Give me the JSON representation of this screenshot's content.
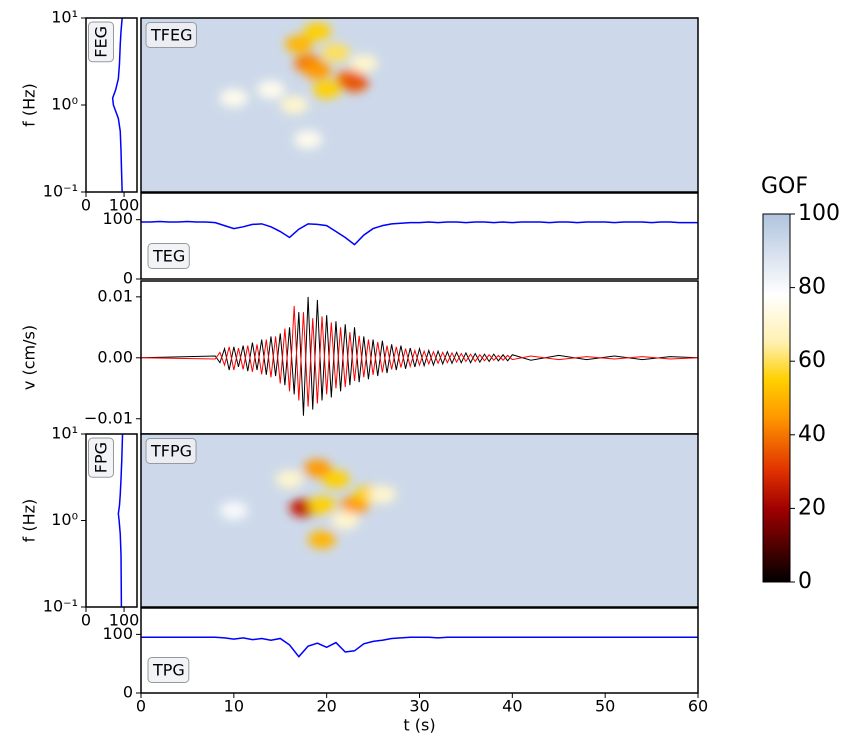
{
  "chart_data": [
    {
      "type": "heatmap",
      "label": "TFEG",
      "ylabel": "f (Hz)",
      "xlim": [
        0,
        60
      ],
      "ylim": [
        0.1,
        10
      ],
      "log_y": true,
      "background": 92,
      "spots": {
        "t": [
          17,
          18,
          19,
          20,
          22.5,
          23,
          16.5,
          10,
          19,
          18,
          21,
          24,
          14
        ],
        "f": [
          5,
          3,
          2.5,
          1.5,
          2,
          1.8,
          1,
          1.2,
          7,
          0.4,
          4,
          3,
          1.5
        ],
        "values": [
          50,
          40,
          45,
          55,
          40,
          35,
          70,
          75,
          55,
          75,
          60,
          70,
          75
        ]
      }
    },
    {
      "type": "profile",
      "label": "FEG",
      "xlim": [
        0,
        134
      ],
      "xticks": [
        0,
        100
      ],
      "ylim": [
        0.1,
        10
      ],
      "log_y": true,
      "yticks": [
        {
          "value": 0.1,
          "label": "10⁻¹"
        },
        {
          "value": 1,
          "label": "10⁰"
        },
        {
          "value": 10,
          "label": "10¹"
        }
      ],
      "f": [
        10,
        7,
        5,
        3,
        2,
        1.5,
        1.2,
        1,
        0.7,
        0.5,
        0.3,
        0.2,
        0.1
      ],
      "values": [
        95,
        92,
        90,
        88,
        85,
        78,
        70,
        72,
        85,
        90,
        92,
        93,
        95
      ],
      "color": "#0000ff"
    },
    {
      "type": "line",
      "label": "TEG",
      "xlim": [
        0,
        60
      ],
      "ylim": [
        0,
        145
      ],
      "yticks": [
        0,
        100
      ],
      "color": "#0000ff",
      "x": [
        0,
        1,
        2,
        3,
        4,
        5,
        6,
        7,
        8,
        9,
        10,
        11,
        12,
        13,
        14,
        15,
        16,
        17,
        18,
        19,
        20,
        21,
        22,
        23,
        24,
        25,
        26,
        27,
        28,
        29,
        30,
        31,
        32,
        33,
        34,
        35,
        36,
        37,
        38,
        39,
        40,
        41,
        42,
        43,
        44,
        45,
        46,
        47,
        48,
        49,
        50,
        51,
        52,
        53,
        54,
        55,
        56,
        57,
        58,
        59,
        60
      ],
      "values": [
        96,
        96,
        97,
        96,
        96,
        97,
        96,
        96,
        95,
        90,
        85,
        88,
        92,
        93,
        88,
        80,
        70,
        84,
        93,
        92,
        90,
        80,
        70,
        58,
        74,
        85,
        90,
        93,
        94,
        95,
        95,
        96,
        95,
        96,
        96,
        95,
        96,
        96,
        95,
        96,
        95,
        96,
        96,
        96,
        95,
        96,
        96,
        95,
        96,
        96,
        96,
        95,
        96,
        96,
        96,
        95,
        96,
        96,
        95,
        95,
        95
      ]
    },
    {
      "type": "line",
      "ylabel": "v (cm/s)",
      "xlim": [
        0,
        60
      ],
      "ylim": [
        -0.0125,
        0.0126
      ],
      "yticks": [
        {
          "value": -0.01,
          "label": "−0.01"
        },
        {
          "value": 0,
          "label": "0.00"
        },
        0.01
      ],
      "x": [
        0,
        8,
        8.5,
        9,
        9.5,
        10,
        10.5,
        11,
        11.5,
        12,
        12.5,
        13,
        13.5,
        14,
        14.5,
        15,
        15.5,
        16,
        16.5,
        17,
        17.5,
        18,
        18.5,
        19,
        19.5,
        20,
        20.5,
        21,
        21.5,
        22,
        22.5,
        23,
        23.5,
        24,
        24.5,
        25,
        25.5,
        26,
        26.5,
        27,
        27.5,
        28,
        28.5,
        29,
        29.5,
        30,
        30.5,
        31,
        31.5,
        32,
        32.5,
        33,
        33.5,
        34,
        34.5,
        35,
        35.5,
        36,
        36.5,
        37,
        37.5,
        38,
        38.5,
        39,
        39.5,
        40,
        42,
        45,
        48,
        51,
        54,
        57,
        60
      ],
      "series": [
        {
          "color": "#000000",
          "values": [
            0,
            0.0003,
            -0.0008,
            0.0015,
            -0.002,
            0.0018,
            -0.0015,
            0.002,
            -0.0022,
            0.0025,
            -0.002,
            0.003,
            -0.0028,
            0.0035,
            -0.003,
            0.004,
            -0.0045,
            0.005,
            -0.006,
            0.0075,
            -0.0095,
            0.01,
            -0.0085,
            0.0095,
            -0.007,
            0.007,
            -0.0065,
            0.006,
            -0.0055,
            0.0055,
            -0.0045,
            0.005,
            -0.004,
            0.0035,
            -0.0035,
            0.003,
            -0.003,
            0.0028,
            -0.0025,
            0.0022,
            -0.002,
            0.002,
            -0.0018,
            0.0016,
            -0.0015,
            0.0015,
            -0.0013,
            0.0012,
            -0.0012,
            0.0011,
            -0.001,
            0.001,
            -0.0009,
            0.0009,
            -0.0008,
            0.0008,
            -0.0008,
            0.0007,
            -0.0007,
            0.0006,
            -0.0006,
            0.0006,
            -0.0005,
            0.0005,
            -0.0005,
            0.0005,
            -0.0004,
            0.0004,
            -0.0003,
            0.0003,
            -0.0003,
            0.0002,
            0
          ]
        },
        {
          "color": "#ff0000",
          "values": [
            0,
            -0.0002,
            0.0009,
            -0.0012,
            0.0018,
            -0.002,
            0.0016,
            -0.0019,
            0.002,
            -0.0023,
            0.0022,
            -0.0027,
            0.003,
            -0.0032,
            0.0035,
            -0.0042,
            0.0048,
            -0.0055,
            0.0085,
            -0.007,
            0.0075,
            -0.008,
            0.0065,
            -0.0075,
            0.0068,
            -0.006,
            0.0058,
            -0.005,
            0.005,
            -0.0048,
            0.0042,
            -0.0038,
            0.0036,
            -0.0032,
            0.003,
            -0.0028,
            0.0026,
            -0.0024,
            0.002,
            -0.0019,
            0.0018,
            -0.0016,
            0.0015,
            -0.0014,
            0.0012,
            -0.0012,
            0.0011,
            -0.001,
            0.001,
            -0.0009,
            0.0009,
            -0.0008,
            0.0008,
            -0.0007,
            0.0007,
            -0.0006,
            0.0006,
            -0.0006,
            0.0005,
            -0.0005,
            0.0005,
            -0.0004,
            0.0004,
            -0.0004,
            0.0004,
            -0.0003,
            0.0003,
            -0.0003,
            0.0002,
            -0.0002,
            0.0002,
            -0.0002,
            0
          ]
        }
      ]
    },
    {
      "type": "heatmap",
      "label": "TFPG",
      "ylabel": "f (Hz)",
      "xlim": [
        0,
        60
      ],
      "ylim": [
        0.1,
        10
      ],
      "log_y": true,
      "background": 92,
      "spots": {
        "t": [
          17.5,
          19.5,
          21,
          23,
          24.5,
          19.5,
          16,
          19,
          26,
          22,
          10
        ],
        "f": [
          1.4,
          0.6,
          3,
          1.5,
          2,
          1.5,
          3,
          4,
          2,
          1,
          1.3
        ],
        "values": [
          25,
          50,
          55,
          45,
          55,
          55,
          70,
          45,
          70,
          70,
          80
        ]
      }
    },
    {
      "type": "profile",
      "label": "FPG",
      "xlim": [
        0,
        134
      ],
      "xticks": [
        0,
        100
      ],
      "ylim": [
        0.1,
        10
      ],
      "log_y": true,
      "yticks": [
        {
          "value": 0.1,
          "label": "10⁻¹"
        },
        {
          "value": 1,
          "label": "10⁰"
        },
        {
          "value": 10,
          "label": "10¹"
        }
      ],
      "f": [
        10,
        5,
        3,
        2,
        1.5,
        1.2,
        1,
        0.7,
        0.4,
        0.1
      ],
      "values": [
        96,
        94,
        92,
        90,
        88,
        85,
        87,
        90,
        92,
        93
      ],
      "color": "#0000ff"
    },
    {
      "type": "line",
      "label": "TPG",
      "xlabel": "t (s)",
      "xlim": [
        0,
        60
      ],
      "xticks": [
        0,
        10,
        20,
        30,
        40,
        50,
        60
      ],
      "ylim": [
        0,
        145
      ],
      "yticks": [
        0,
        100
      ],
      "color": "#0000ff",
      "x": [
        0,
        1,
        2,
        3,
        4,
        5,
        6,
        7,
        8,
        9,
        10,
        11,
        12,
        13,
        14,
        15,
        16,
        17,
        18,
        19,
        20,
        21,
        22,
        23,
        24,
        25,
        26,
        27,
        28,
        29,
        30,
        31,
        32,
        33,
        34,
        35,
        36,
        37,
        38,
        39,
        40,
        41,
        42,
        43,
        44,
        45,
        46,
        47,
        48,
        49,
        50,
        51,
        52,
        53,
        54,
        55,
        56,
        57,
        58,
        59,
        60
      ],
      "values": [
        95,
        95,
        95,
        95,
        95,
        95,
        95,
        95,
        95,
        94,
        92,
        94,
        91,
        93,
        90,
        93,
        82,
        62,
        80,
        85,
        78,
        86,
        70,
        72,
        84,
        88,
        90,
        93,
        94,
        95,
        95,
        95,
        94,
        95,
        95,
        95,
        95,
        95,
        95,
        95,
        95,
        95,
        95,
        95,
        95,
        95,
        95,
        95,
        95,
        95,
        95,
        95,
        95,
        95,
        95,
        95,
        95,
        95,
        95,
        95,
        95
      ]
    },
    {
      "type": "colorbar",
      "title": "GOF",
      "lim": [
        0,
        100
      ],
      "ticks": [
        0,
        20,
        40,
        60,
        80,
        100
      ],
      "colors": [
        {
          "value": 0,
          "color": "#000000"
        },
        {
          "value": 20,
          "color": "#a00000"
        },
        {
          "value": 30,
          "color": "#e03000"
        },
        {
          "value": 45,
          "color": "#ff9900"
        },
        {
          "value": 55,
          "color": "#ffd000"
        },
        {
          "value": 65,
          "color": "#fff0b0"
        },
        {
          "value": 78,
          "color": "#ffffff"
        },
        {
          "value": 100,
          "color": "#b0c4de"
        }
      ]
    }
  ]
}
